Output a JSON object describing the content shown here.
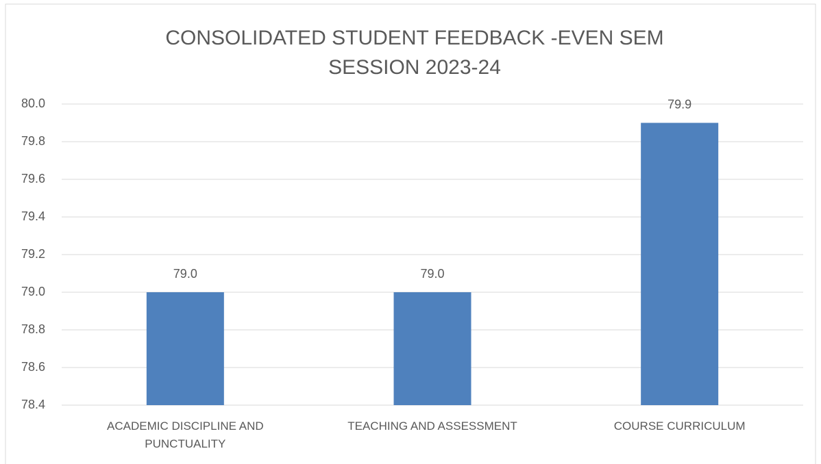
{
  "chart_data": {
    "type": "bar",
    "title": [
      "CONSOLIDATED STUDENT FEEDBACK -EVEN SEM",
      "SESSION 2023-24"
    ],
    "categories": [
      "ACADEMIC DISCIPLINE AND PUNCTUALITY",
      "TEACHING AND ASSESSMENT",
      "COURSE CURRICULUM"
    ],
    "values": [
      79.0,
      79.0,
      79.9
    ],
    "value_labels": [
      "79.0",
      "79.0",
      "79.9"
    ],
    "color": "#4f81bd",
    "ylim": [
      78.4,
      80.0
    ],
    "yticks": [
      {
        "value": 78.4,
        "label": "78.4"
      },
      78.6,
      78.8,
      {
        "value": 79.0,
        "label": "79.0"
      },
      79.2,
      79.4,
      79.6,
      79.8,
      {
        "value": 80.0,
        "label": "80.0"
      }
    ],
    "grid": true
  }
}
